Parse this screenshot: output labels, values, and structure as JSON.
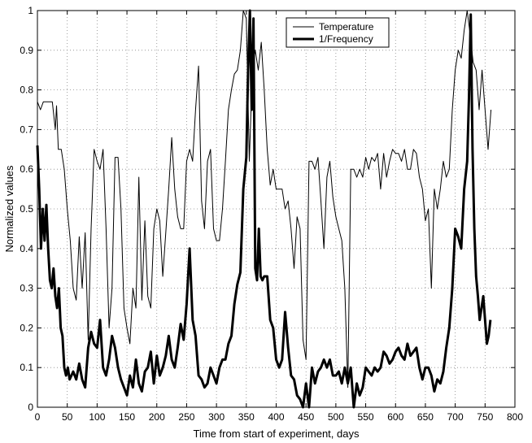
{
  "chart_data": {
    "type": "line",
    "title": "",
    "xlabel": "Time from start of experiment, days",
    "ylabel": "Normalized values",
    "xlim": [
      0,
      800
    ],
    "ylim": [
      0,
      1
    ],
    "xticks": [
      "0",
      "50",
      "100",
      "150",
      "200",
      "250",
      "300",
      "350",
      "400",
      "450",
      "500",
      "550",
      "600",
      "650",
      "700",
      "750",
      "800"
    ],
    "yticks": [
      "0",
      "0.1",
      "0.2",
      "0.3",
      "0.4",
      "0.5",
      "0.6",
      "0.7",
      "0.8",
      "0.9",
      "1"
    ],
    "grid": true,
    "legend_position": "top-center",
    "series": [
      {
        "name": "Temperature",
        "style": "thin",
        "color": "#000000",
        "x": [
          0,
          5,
          10,
          15,
          20,
          25,
          30,
          32,
          35,
          40,
          45,
          50,
          55,
          60,
          65,
          70,
          75,
          80,
          85,
          90,
          95,
          100,
          105,
          110,
          115,
          120,
          125,
          130,
          135,
          140,
          145,
          150,
          155,
          160,
          165,
          170,
          175,
          180,
          185,
          190,
          195,
          200,
          205,
          210,
          215,
          220,
          225,
          230,
          235,
          240,
          245,
          250,
          255,
          260,
          265,
          270,
          275,
          280,
          285,
          290,
          295,
          300,
          305,
          310,
          315,
          320,
          325,
          330,
          335,
          340,
          345,
          350,
          355,
          360,
          365,
          370,
          375,
          380,
          385,
          390,
          395,
          400,
          405,
          410,
          415,
          420,
          425,
          430,
          435,
          440,
          445,
          450,
          455,
          460,
          465,
          470,
          475,
          480,
          485,
          490,
          495,
          500,
          505,
          510,
          515,
          520,
          525,
          530,
          535,
          540,
          545,
          550,
          555,
          560,
          565,
          570,
          575,
          580,
          585,
          590,
          595,
          600,
          605,
          610,
          615,
          620,
          625,
          630,
          635,
          640,
          645,
          650,
          655,
          660,
          665,
          670,
          675,
          680,
          685,
          690,
          695,
          700,
          705,
          710,
          715,
          720,
          725,
          730,
          735,
          740,
          745,
          750,
          755,
          760
        ],
        "y": [
          0.77,
          0.75,
          0.77,
          0.77,
          0.77,
          0.77,
          0.7,
          0.76,
          0.65,
          0.65,
          0.6,
          0.5,
          0.42,
          0.3,
          0.27,
          0.43,
          0.3,
          0.44,
          0.17,
          0.45,
          0.65,
          0.62,
          0.6,
          0.65,
          0.45,
          0.2,
          0.3,
          0.63,
          0.63,
          0.5,
          0.25,
          0.2,
          0.16,
          0.3,
          0.25,
          0.58,
          0.27,
          0.47,
          0.28,
          0.25,
          0.45,
          0.5,
          0.47,
          0.33,
          0.44,
          0.55,
          0.68,
          0.55,
          0.48,
          0.45,
          0.45,
          0.62,
          0.65,
          0.62,
          0.75,
          0.86,
          0.52,
          0.45,
          0.62,
          0.65,
          0.45,
          0.42,
          0.42,
          0.5,
          0.62,
          0.75,
          0.8,
          0.84,
          0.85,
          0.9,
          1.0,
          0.98,
          0.62,
          0.85,
          0.9,
          0.85,
          0.92,
          0.8,
          0.65,
          0.56,
          0.6,
          0.55,
          0.55,
          0.55,
          0.5,
          0.52,
          0.45,
          0.35,
          0.48,
          0.45,
          0.17,
          0.12,
          0.62,
          0.62,
          0.6,
          0.63,
          0.52,
          0.4,
          0.58,
          0.62,
          0.53,
          0.48,
          0.45,
          0.42,
          0.3,
          0.05,
          0.6,
          0.6,
          0.58,
          0.6,
          0.58,
          0.63,
          0.6,
          0.63,
          0.62,
          0.64,
          0.55,
          0.64,
          0.58,
          0.62,
          0.65,
          0.64,
          0.64,
          0.62,
          0.65,
          0.6,
          0.6,
          0.65,
          0.64,
          0.58,
          0.55,
          0.47,
          0.5,
          0.3,
          0.55,
          0.5,
          0.55,
          0.62,
          0.58,
          0.6,
          0.75,
          0.85,
          0.9,
          0.88,
          0.95,
          1.0,
          0.94,
          0.87,
          0.85,
          0.75,
          0.85,
          0.75,
          0.65,
          0.75
        ]
      },
      {
        "name": "1/Frequency",
        "style": "thick",
        "color": "#000000",
        "x": [
          0,
          3,
          6,
          9,
          12,
          15,
          18,
          21,
          24,
          27,
          30,
          33,
          36,
          39,
          42,
          45,
          48,
          51,
          54,
          57,
          60,
          65,
          70,
          75,
          80,
          85,
          90,
          95,
          100,
          105,
          110,
          115,
          120,
          125,
          130,
          135,
          140,
          145,
          150,
          155,
          160,
          165,
          170,
          175,
          180,
          185,
          190,
          195,
          200,
          205,
          210,
          215,
          220,
          225,
          230,
          235,
          240,
          245,
          250,
          255,
          260,
          265,
          270,
          275,
          280,
          285,
          290,
          295,
          300,
          305,
          310,
          315,
          320,
          325,
          330,
          335,
          340,
          345,
          350,
          353,
          356,
          359,
          362,
          365,
          368,
          371,
          374,
          377,
          380,
          385,
          390,
          395,
          400,
          405,
          410,
          415,
          420,
          425,
          430,
          435,
          440,
          445,
          450,
          455,
          460,
          465,
          470,
          475,
          480,
          485,
          490,
          495,
          500,
          505,
          510,
          515,
          520,
          525,
          530,
          535,
          540,
          545,
          550,
          555,
          560,
          565,
          570,
          575,
          580,
          585,
          590,
          595,
          600,
          605,
          610,
          615,
          620,
          625,
          630,
          635,
          640,
          645,
          650,
          655,
          660,
          665,
          670,
          675,
          680,
          685,
          690,
          695,
          700,
          705,
          710,
          715,
          720,
          723,
          726,
          729,
          732,
          735,
          738,
          741,
          744,
          747,
          750,
          753,
          756,
          759
        ],
        "y": [
          0.66,
          0.55,
          0.4,
          0.5,
          0.42,
          0.51,
          0.4,
          0.32,
          0.3,
          0.35,
          0.28,
          0.25,
          0.3,
          0.2,
          0.18,
          0.1,
          0.08,
          0.1,
          0.07,
          0.08,
          0.09,
          0.07,
          0.11,
          0.07,
          0.05,
          0.15,
          0.19,
          0.16,
          0.15,
          0.22,
          0.1,
          0.08,
          0.12,
          0.18,
          0.15,
          0.1,
          0.07,
          0.05,
          0.03,
          0.08,
          0.05,
          0.12,
          0.06,
          0.04,
          0.09,
          0.1,
          0.14,
          0.06,
          0.13,
          0.08,
          0.1,
          0.13,
          0.18,
          0.12,
          0.1,
          0.15,
          0.21,
          0.17,
          0.26,
          0.4,
          0.22,
          0.18,
          0.08,
          0.07,
          0.05,
          0.06,
          0.1,
          0.08,
          0.06,
          0.1,
          0.12,
          0.12,
          0.16,
          0.18,
          0.26,
          0.31,
          0.34,
          0.55,
          0.63,
          0.85,
          1.0,
          0.75,
          0.98,
          0.35,
          0.32,
          0.45,
          0.33,
          0.32,
          0.33,
          0.33,
          0.22,
          0.2,
          0.12,
          0.1,
          0.12,
          0.24,
          0.15,
          0.08,
          0.07,
          0.03,
          0.02,
          0.0,
          0.06,
          0.0,
          0.1,
          0.06,
          0.09,
          0.1,
          0.12,
          0.1,
          0.12,
          0.08,
          0.08,
          0.09,
          0.06,
          0.1,
          0.06,
          0.1,
          0.0,
          0.06,
          0.03,
          0.05,
          0.1,
          0.09,
          0.08,
          0.1,
          0.09,
          0.1,
          0.14,
          0.13,
          0.11,
          0.12,
          0.14,
          0.15,
          0.13,
          0.12,
          0.16,
          0.13,
          0.14,
          0.15,
          0.1,
          0.07,
          0.1,
          0.1,
          0.08,
          0.04,
          0.07,
          0.06,
          0.09,
          0.15,
          0.2,
          0.3,
          0.45,
          0.43,
          0.4,
          0.55,
          0.62,
          0.78,
          0.99,
          0.65,
          0.45,
          0.33,
          0.28,
          0.22,
          0.25,
          0.28,
          0.22,
          0.16,
          0.18,
          0.22
        ]
      }
    ]
  }
}
